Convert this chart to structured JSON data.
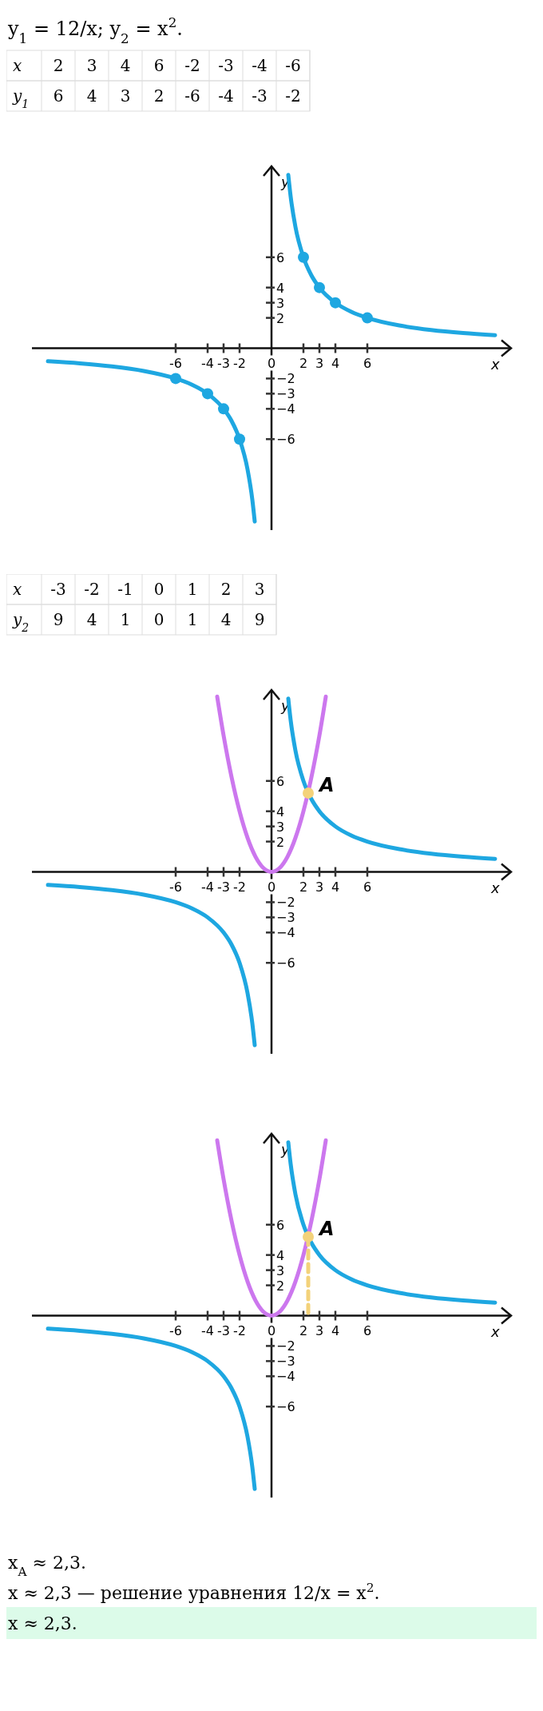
{
  "chart_data": [
    {
      "type": "heatmap",
      "data_labels": true,
      "title": "y$_{1}$ = 12/x; y$_{2}$ = x$^{2}$.",
      "xlabel": "x",
      "categories": [
        "2",
        "3",
        "4",
        "6",
        "-2",
        "-3",
        "-4",
        "-6"
      ],
      "y_categories": [
        "y$_{1}$"
      ],
      "cells": [
        [
          6,
          4,
          3,
          2,
          -6,
          -4,
          -3,
          -2
        ]
      ]
    },
    {
      "type": "line",
      "xlabel": "x",
      "ylabel": "y",
      "xlim": [
        -15,
        15
      ],
      "ylim": [
        -12,
        12
      ],
      "xticks": [
        -6,
        -4,
        -3,
        -2,
        0,
        2,
        3,
        4,
        6
      ],
      "yticks": [
        {
          "value": -6,
          "label": "−6"
        },
        {
          "value": -4,
          "label": "−4"
        },
        {
          "value": -3,
          "label": "−3"
        },
        {
          "value": -2,
          "label": "−2"
        },
        2,
        3,
        4,
        6
      ],
      "series": [
        {
          "color": "#1ea7e1",
          "x": [
            1.05,
            1.2,
            1.5,
            2,
            2.5,
            3,
            4,
            5,
            6,
            8,
            10,
            12,
            14
          ],
          "values": [
            11.43,
            10,
            8,
            6,
            4.8,
            4,
            3,
            2.4,
            2,
            1.5,
            1.2,
            1,
            0.86
          ]
        },
        {
          "color": "#1ea7e1",
          "x": [
            -14,
            -12,
            -10,
            -8,
            -6,
            -5,
            -4,
            -3,
            -2.5,
            -2,
            -1.5,
            -1.2,
            -1.05
          ],
          "values": [
            -0.86,
            -1,
            -1.2,
            -1.5,
            -2,
            -2.4,
            -3,
            -4,
            -4.8,
            -6,
            -8,
            -10,
            -11.43
          ]
        },
        {
          "type": "scatter",
          "marker": "circle",
          "color": "#1ea7e1",
          "x": [
            2,
            3,
            4,
            6,
            -2,
            -3,
            -4,
            -6
          ],
          "values": [
            6,
            4,
            3,
            2,
            -6,
            -4,
            -3,
            -2
          ]
        }
      ]
    },
    {
      "type": "heatmap",
      "data_labels": true,
      "xlabel": "x",
      "categories": [
        "-3",
        "-2",
        "-1",
        "0",
        "1",
        "2",
        "3"
      ],
      "y_categories": [
        "y$_{2}$"
      ],
      "cells": [
        [
          9,
          4,
          1,
          0,
          1,
          4,
          9
        ]
      ]
    },
    {
      "type": "line",
      "xlabel": "x",
      "ylabel": "y",
      "xlim": [
        -15,
        15
      ],
      "ylim": [
        -12,
        12
      ],
      "xticks": [
        -6,
        -4,
        -3,
        -2,
        0,
        2,
        3,
        4,
        6
      ],
      "yticks": [
        {
          "value": -6,
          "label": "−6"
        },
        {
          "value": -4,
          "label": "−4"
        },
        {
          "value": -3,
          "label": "−3"
        },
        {
          "value": -2,
          "label": "−2"
        },
        2,
        3,
        4,
        6
      ],
      "annotations": [
        {
          "text": "A",
          "x": 2.3,
          "y": 5.2
        }
      ],
      "series": [
        {
          "color": "#1ea7e1",
          "x": [
            1.05,
            1.2,
            1.5,
            2,
            2.5,
            3,
            4,
            5,
            6,
            8,
            10,
            12,
            14
          ],
          "values": [
            11.43,
            10,
            8,
            6,
            4.8,
            4,
            3,
            2.4,
            2,
            1.5,
            1.2,
            1,
            0.86
          ]
        },
        {
          "color": "#1ea7e1",
          "x": [
            -14,
            -12,
            -10,
            -8,
            -6,
            -5,
            -4,
            -3,
            -2.5,
            -2,
            -1.5,
            -1.2,
            -1.05
          ],
          "values": [
            -0.86,
            -1,
            -1.2,
            -1.5,
            -2,
            -2.4,
            -3,
            -4,
            -4.8,
            -6,
            -8,
            -10,
            -11.43
          ]
        },
        {
          "color": "#cc77ee",
          "x": [
            -3.4,
            -3,
            -2.5,
            -2,
            -1.5,
            -1,
            -0.5,
            0,
            0.5,
            1,
            1.5,
            2,
            2.5,
            3,
            3.4
          ],
          "values": [
            11.56,
            9,
            6.25,
            4,
            2.25,
            1,
            0.25,
            0,
            0.25,
            1,
            2.25,
            4,
            6.25,
            9,
            11.56
          ]
        },
        {
          "type": "scatter",
          "marker": "circle",
          "color": "#f3d27a",
          "x": [
            2.3
          ],
          "values": [
            5.2
          ]
        }
      ]
    },
    {
      "type": "line",
      "xlabel": "x",
      "ylabel": "y",
      "xlim": [
        -15,
        15
      ],
      "ylim": [
        -12,
        12
      ],
      "xticks": [
        -6,
        -4,
        -3,
        -2,
        0,
        2,
        3,
        4,
        6
      ],
      "yticks": [
        {
          "value": -6,
          "label": "−6"
        },
        {
          "value": -4,
          "label": "−4"
        },
        {
          "value": -3,
          "label": "−3"
        },
        {
          "value": -2,
          "label": "−2"
        },
        2,
        3,
        4,
        6
      ],
      "annotations": [
        {
          "text": "A",
          "x": 2.3,
          "y": 5.2
        }
      ],
      "series": [
        {
          "color": "#1ea7e1",
          "x": [
            1.05,
            1.2,
            1.5,
            2,
            2.5,
            3,
            4,
            5,
            6,
            8,
            10,
            12,
            14
          ],
          "values": [
            11.43,
            10,
            8,
            6,
            4.8,
            4,
            3,
            2.4,
            2,
            1.5,
            1.2,
            1,
            0.86
          ]
        },
        {
          "color": "#1ea7e1",
          "x": [
            -14,
            -12,
            -10,
            -8,
            -6,
            -5,
            -4,
            -3,
            -2.5,
            -2,
            -1.5,
            -1.2,
            -1.05
          ],
          "values": [
            -0.86,
            -1,
            -1.2,
            -1.5,
            -2,
            -2.4,
            -3,
            -4,
            -4.8,
            -6,
            -8,
            -10,
            -11.43
          ]
        },
        {
          "color": "#cc77ee",
          "x": [
            -3.4,
            -3,
            -2.5,
            -2,
            -1.5,
            -1,
            -0.5,
            0,
            0.5,
            1,
            1.5,
            2,
            2.5,
            3,
            3.4
          ],
          "values": [
            11.56,
            9,
            6.25,
            4,
            2.25,
            1,
            0.25,
            0,
            0.25,
            1,
            2.25,
            4,
            6.25,
            9,
            11.56
          ]
        },
        {
          "color": "#f3d27a",
          "line_style": "dashed",
          "x": [
            2.3,
            2.3
          ],
          "values": [
            5.2,
            0
          ]
        },
        {
          "type": "scatter",
          "marker": "circle",
          "color": "#f3d27a",
          "x": [
            2.3
          ],
          "values": [
            5.2
          ]
        }
      ]
    },
    {
      "type": "other",
      "annotations": [
        "x$_{A}$ ≈ 2,3.",
        "x ≈ 2,3 — решение уравнения 12/x = x$^{2}$.",
        "x ≈ 2,3."
      ]
    }
  ]
}
